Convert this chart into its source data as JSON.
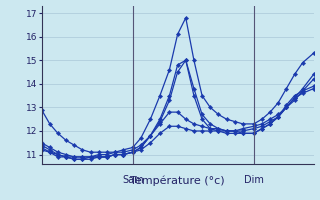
{
  "bg_color": "#cce8f0",
  "line_color": "#1a3aad",
  "grid_color": "#aac8d8",
  "ylim": [
    10.6,
    17.3
  ],
  "yticks": [
    11,
    12,
    13,
    14,
    15,
    16,
    17
  ],
  "xlabel": "Température (°c)",
  "xtick_labels": [
    "Sam",
    "Dim"
  ],
  "xtick_positions": [
    0.335,
    0.78
  ],
  "vline_positions": [
    0.335,
    0.78
  ],
  "series": [
    {
      "x": [
        0.0,
        0.03,
        0.06,
        0.09,
        0.12,
        0.15,
        0.18,
        0.21,
        0.24,
        0.27,
        0.3,
        0.335,
        0.365,
        0.4,
        0.435,
        0.47,
        0.5,
        0.53,
        0.56,
        0.59,
        0.62,
        0.65,
        0.68,
        0.71,
        0.74,
        0.78,
        0.81,
        0.84,
        0.87,
        0.9,
        0.93,
        0.96,
        1.0
      ],
      "y": [
        12.9,
        12.3,
        11.9,
        11.6,
        11.4,
        11.2,
        11.1,
        11.1,
        11.1,
        11.1,
        11.2,
        11.3,
        11.7,
        12.5,
        13.5,
        14.6,
        16.1,
        16.8,
        15.0,
        13.5,
        13.0,
        12.7,
        12.5,
        12.4,
        12.3,
        12.3,
        12.5,
        12.8,
        13.2,
        13.8,
        14.4,
        14.9,
        15.3
      ]
    },
    {
      "x": [
        0.0,
        0.03,
        0.06,
        0.09,
        0.12,
        0.15,
        0.18,
        0.21,
        0.24,
        0.27,
        0.3,
        0.335,
        0.365,
        0.4,
        0.435,
        0.47,
        0.5,
        0.53,
        0.56,
        0.59,
        0.62,
        0.65,
        0.68,
        0.71,
        0.74,
        0.78,
        0.81,
        0.84,
        0.87,
        0.9,
        0.93,
        0.96,
        1.0
      ],
      "y": [
        11.5,
        11.3,
        11.1,
        11.0,
        10.9,
        10.9,
        10.9,
        10.9,
        10.9,
        11.0,
        11.0,
        11.1,
        11.3,
        11.8,
        12.5,
        13.5,
        14.8,
        15.0,
        13.8,
        12.7,
        12.3,
        12.1,
        12.0,
        12.0,
        11.9,
        11.9,
        12.1,
        12.3,
        12.6,
        13.0,
        13.4,
        13.8,
        14.4
      ]
    },
    {
      "x": [
        0.0,
        0.03,
        0.06,
        0.09,
        0.12,
        0.15,
        0.18,
        0.21,
        0.24,
        0.27,
        0.3,
        0.335,
        0.365,
        0.4,
        0.435,
        0.47,
        0.5,
        0.53,
        0.56,
        0.59,
        0.62,
        0.65,
        0.68,
        0.71,
        0.74,
        0.78,
        0.81,
        0.84,
        0.87,
        0.9,
        0.93,
        0.96,
        1.0
      ],
      "y": [
        11.4,
        11.2,
        11.0,
        10.9,
        10.8,
        10.8,
        10.8,
        10.9,
        10.9,
        11.0,
        11.0,
        11.1,
        11.3,
        11.8,
        12.4,
        13.3,
        14.5,
        15.0,
        13.5,
        12.5,
        12.1,
        12.0,
        11.9,
        11.9,
        11.9,
        11.9,
        12.1,
        12.3,
        12.6,
        13.1,
        13.5,
        13.7,
        13.9
      ]
    },
    {
      "x": [
        0.0,
        0.03,
        0.06,
        0.09,
        0.12,
        0.15,
        0.18,
        0.21,
        0.24,
        0.27,
        0.3,
        0.335,
        0.365,
        0.4,
        0.435,
        0.47,
        0.5,
        0.53,
        0.56,
        0.59,
        0.62,
        0.65,
        0.68,
        0.71,
        0.74,
        0.78,
        0.81,
        0.84,
        0.87,
        0.9,
        0.93,
        0.96,
        1.0
      ],
      "y": [
        11.3,
        11.1,
        11.0,
        10.9,
        10.9,
        10.9,
        10.9,
        11.0,
        11.0,
        11.1,
        11.1,
        11.2,
        11.4,
        11.8,
        12.3,
        12.8,
        12.8,
        12.5,
        12.3,
        12.2,
        12.1,
        12.1,
        12.0,
        12.0,
        12.0,
        12.1,
        12.2,
        12.4,
        12.6,
        13.0,
        13.4,
        13.6,
        13.8
      ]
    },
    {
      "x": [
        0.0,
        0.03,
        0.06,
        0.09,
        0.12,
        0.15,
        0.18,
        0.21,
        0.24,
        0.27,
        0.3,
        0.335,
        0.365,
        0.4,
        0.435,
        0.47,
        0.5,
        0.53,
        0.56,
        0.59,
        0.62,
        0.65,
        0.68,
        0.71,
        0.74,
        0.78,
        0.81,
        0.84,
        0.87,
        0.9,
        0.93,
        0.96,
        1.0
      ],
      "y": [
        11.2,
        11.1,
        10.9,
        10.9,
        10.8,
        10.8,
        10.9,
        10.9,
        10.9,
        11.0,
        11.0,
        11.1,
        11.2,
        11.5,
        11.9,
        12.2,
        12.2,
        12.1,
        12.0,
        12.0,
        12.0,
        12.0,
        12.0,
        12.0,
        12.1,
        12.2,
        12.3,
        12.5,
        12.7,
        13.0,
        13.3,
        13.7,
        14.2
      ]
    }
  ]
}
